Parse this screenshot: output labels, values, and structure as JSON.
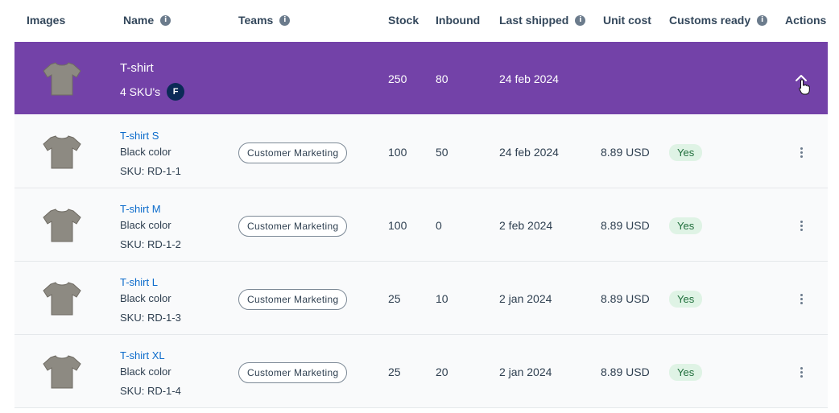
{
  "columns": {
    "images": "Images",
    "name": "Name",
    "teams": "Teams",
    "stock": "Stock",
    "inbound": "Inbound",
    "last_shipped": "Last shipped",
    "unit_cost": "Unit cost",
    "customs_ready": "Customs ready",
    "actions": "Actions"
  },
  "info_glyph": "i",
  "parent": {
    "name": "T-shirt",
    "skus": "4 SKU's",
    "owner_badge": "F",
    "stock": "250",
    "inbound": "80",
    "last_shipped": "24 feb 2024",
    "icon": "chevron-up-icon",
    "bg_color": "#7342a8"
  },
  "items": [
    {
      "name": "T-shirt S",
      "color": "Black color",
      "sku": "SKU: RD-1-1",
      "team": "Customer Marketing",
      "stock": "100",
      "inbound": "50",
      "last_shipped": "24 feb 2024",
      "unit_cost": "8.89 USD",
      "customs": "Yes"
    },
    {
      "name": "T-shirt M",
      "color": "Black color",
      "sku": "SKU: RD-1-2",
      "team": "Customer Marketing",
      "stock": "100",
      "inbound": "0",
      "last_shipped": "2 feb 2024",
      "unit_cost": "8.89 USD",
      "customs": "Yes"
    },
    {
      "name": "T-shirt L",
      "color": "Black color",
      "sku": "SKU: RD-1-3",
      "team": "Customer Marketing",
      "stock": "25",
      "inbound": "10",
      "last_shipped": "2 jan 2024",
      "unit_cost": "8.89 USD",
      "customs": "Yes"
    },
    {
      "name": "T-shirt XL",
      "color": "Black color",
      "sku": "SKU: RD-1-4",
      "team": "Customer Marketing",
      "stock": "25",
      "inbound": "20",
      "last_shipped": "2 jan 2024",
      "unit_cost": "8.89 USD",
      "customs": "Yes"
    }
  ]
}
